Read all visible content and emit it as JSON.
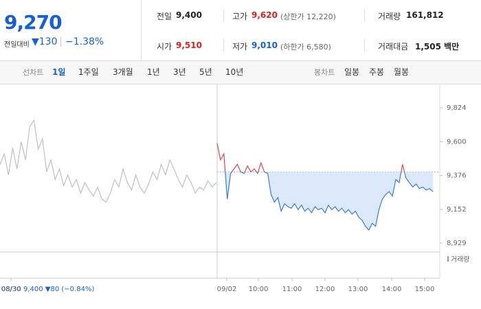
{
  "header": {
    "price": "9,270",
    "change_label": "전일대비",
    "change": "▼130",
    "change_pct": "−1.38%",
    "stats": [
      {
        "label": "전일",
        "value": "9,400"
      },
      {
        "label": "고가",
        "value": "9,620",
        "note": "(상한가 12,220)"
      },
      {
        "label": "거래량",
        "value": "161,812"
      },
      {
        "label": "시가",
        "value": "9,510"
      },
      {
        "label": "저가",
        "value": "9,010",
        "note": "(하한가 6,580)"
      },
      {
        "label": "거래대금",
        "value": "1,505 백만"
      }
    ]
  },
  "toolbar": {
    "line_label": "선차트",
    "periods": [
      "1일",
      "1주일",
      "3개월",
      "1년",
      "3년",
      "5년",
      "10년"
    ],
    "candle_label": "봉차트",
    "candles": [
      "일봉",
      "주봉",
      "월봉"
    ]
  },
  "chart_data": {
    "type": "line",
    "baseline": 9400,
    "ylim": [
      8870,
      9970
    ],
    "yticks": [
      {
        "value": 9824,
        "label": "9,824"
      },
      {
        "value": 9600,
        "label": "9,600"
      },
      {
        "value": 9376,
        "label": "9,376"
      },
      {
        "value": 9152,
        "label": "9,152"
      },
      {
        "value": 8929,
        "label": "8,929"
      }
    ],
    "xlabels": [
      "08/30",
      "09/02",
      "10:00",
      "11:00",
      "12:00",
      "13:00",
      "14:00",
      "15:00"
    ],
    "volume_label": "거래량",
    "footer": "08/30  9,400 ▼80 (−0.84%)",
    "series": [
      {
        "name": "08/30",
        "color": "#bbbbbb",
        "values": [
          9450,
          9520,
          9380,
          9560,
          9420,
          9600,
          9480,
          9700,
          9742,
          9550,
          9620,
          9400,
          9480,
          9350,
          9420,
          9310,
          9380,
          9300,
          9350,
          9260,
          9330,
          9280,
          9240,
          9300,
          9220,
          9200,
          9260,
          9350,
          9300,
          9420,
          9330,
          9280,
          9380,
          9300,
          9260,
          9320,
          9400,
          9350,
          9450,
          9380,
          9480,
          9420,
          9350,
          9300,
          9380,
          9330,
          9260,
          9300,
          9280,
          9340,
          9300,
          9330
        ]
      },
      {
        "name": "09/02",
        "color": "#3a7be0",
        "up_color": "#e8414a",
        "fill": "#dce9fb",
        "values": [
          9590,
          9480,
          9520,
          9220,
          9390,
          9420,
          9450,
          9400,
          9390,
          9440,
          9400,
          9420,
          9390,
          9460,
          9400,
          9390,
          9250,
          9200,
          9230,
          9140,
          9190,
          9170,
          9160,
          9190,
          9150,
          9180,
          9140,
          9160,
          9130,
          9170,
          9150,
          9160,
          9130,
          9180,
          9150,
          9170,
          9140,
          9160,
          9130,
          9150,
          9120,
          9140,
          9100,
          9080,
          9040,
          9016,
          9060,
          9040,
          9150,
          9220,
          9250,
          9270,
          9240,
          9350,
          9330,
          9450,
          9360,
          9330,
          9300,
          9320,
          9290,
          9300,
          9280,
          9290,
          9270
        ]
      }
    ]
  }
}
